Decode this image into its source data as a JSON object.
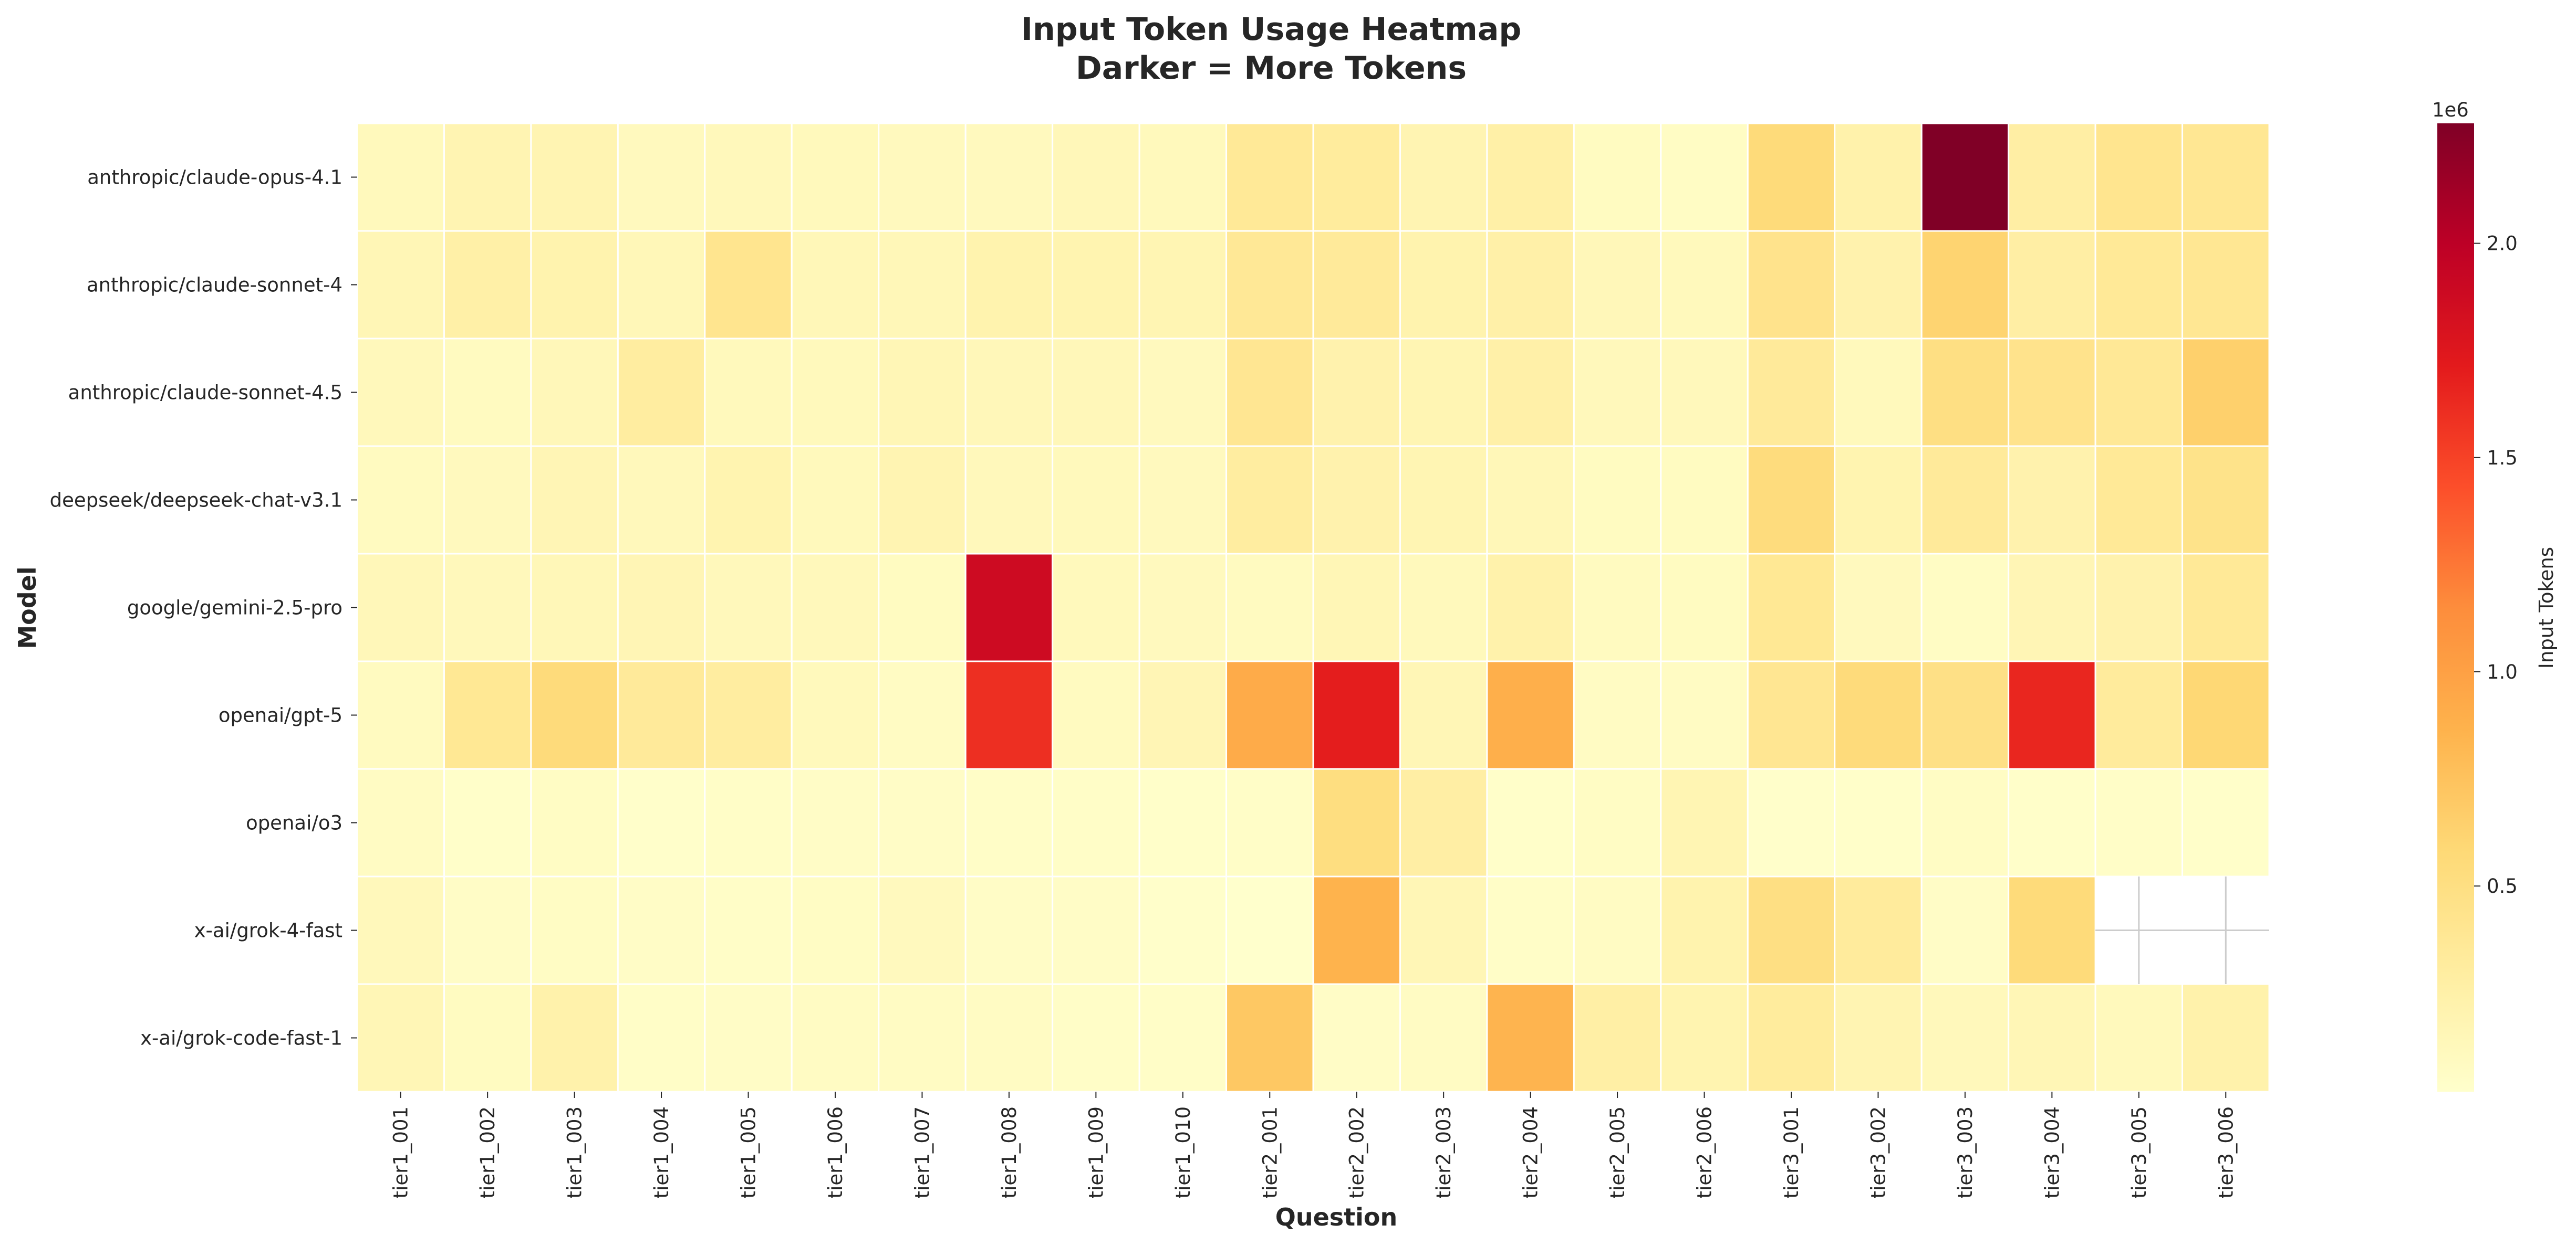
{
  "chart_data": {
    "type": "heatmap",
    "title_line1": "Input Token Usage Heatmap",
    "title_line2": "Darker = More Tokens",
    "xlabel": "Question",
    "ylabel": "Model",
    "colorbar_label": "Input Tokens",
    "colorbar_offset": "1e6",
    "colorbar_ticks": [
      "0.5",
      "1.0",
      "1.5",
      "2.0"
    ],
    "colorbar_tick_values": [
      500000,
      1000000,
      1500000,
      2000000
    ],
    "vmin": 20000,
    "vmax": 2280000,
    "colormap": "YlOrRd",
    "x": [
      "tier1_001",
      "tier1_002",
      "tier1_003",
      "tier1_004",
      "tier1_005",
      "tier1_006",
      "tier1_007",
      "tier1_008",
      "tier1_009",
      "tier1_010",
      "tier2_001",
      "tier2_002",
      "tier2_003",
      "tier2_004",
      "tier2_005",
      "tier2_006",
      "tier3_001",
      "tier3_002",
      "tier3_003",
      "tier3_004",
      "tier3_005",
      "tier3_006"
    ],
    "y": [
      "anthropic/claude-opus-4.1",
      "anthropic/claude-sonnet-4",
      "anthropic/claude-sonnet-4.5",
      "deepseek/deepseek-chat-v3.1",
      "google/gemini-2.5-pro",
      "openai/gpt-5",
      "openai/o3",
      "x-ai/grok-4-fast",
      "x-ai/grok-code-fast-1"
    ],
    "values": [
      [
        120000,
        190000,
        190000,
        110000,
        130000,
        120000,
        110000,
        110000,
        140000,
        120000,
        360000,
        320000,
        190000,
        260000,
        90000,
        70000,
        560000,
        230000,
        2280000,
        280000,
        420000,
        390000
      ],
      [
        160000,
        260000,
        210000,
        150000,
        420000,
        150000,
        150000,
        210000,
        200000,
        180000,
        370000,
        340000,
        210000,
        250000,
        140000,
        120000,
        440000,
        220000,
        620000,
        280000,
        360000,
        390000
      ],
      [
        130000,
        100000,
        140000,
        300000,
        120000,
        120000,
        160000,
        140000,
        140000,
        110000,
        400000,
        220000,
        180000,
        250000,
        130000,
        130000,
        340000,
        120000,
        500000,
        440000,
        370000,
        650000
      ],
      [
        100000,
        110000,
        170000,
        130000,
        200000,
        120000,
        190000,
        130000,
        120000,
        110000,
        300000,
        220000,
        180000,
        150000,
        90000,
        90000,
        540000,
        200000,
        340000,
        220000,
        360000,
        450000
      ],
      [
        140000,
        130000,
        150000,
        170000,
        130000,
        130000,
        90000,
        1880000,
        120000,
        110000,
        100000,
        160000,
        120000,
        230000,
        100000,
        90000,
        380000,
        110000,
        70000,
        170000,
        220000,
        360000
      ],
      [
        100000,
        380000,
        550000,
        340000,
        300000,
        120000,
        80000,
        1600000,
        100000,
        170000,
        920000,
        1700000,
        160000,
        890000,
        80000,
        80000,
        400000,
        550000,
        480000,
        1650000,
        330000,
        590000
      ],
      [
        80000,
        40000,
        70000,
        30000,
        50000,
        60000,
        60000,
        50000,
        50000,
        40000,
        50000,
        520000,
        280000,
        40000,
        70000,
        180000,
        30000,
        40000,
        70000,
        40000,
        50000,
        40000
      ],
      [
        130000,
        60000,
        70000,
        60000,
        50000,
        70000,
        110000,
        60000,
        60000,
        30000,
        20000,
        860000,
        160000,
        50000,
        80000,
        210000,
        500000,
        330000,
        60000,
        560000,
        null,
        null
      ],
      [
        160000,
        90000,
        230000,
        50000,
        60000,
        80000,
        80000,
        80000,
        50000,
        50000,
        710000,
        60000,
        80000,
        850000,
        270000,
        200000,
        320000,
        190000,
        130000,
        160000,
        120000,
        230000
      ]
    ]
  }
}
